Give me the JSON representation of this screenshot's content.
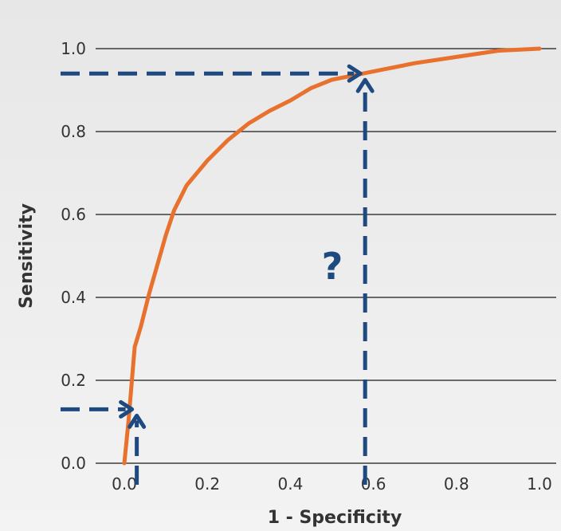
{
  "chart_data": {
    "type": "line",
    "title": "",
    "xlabel": "1 - Specificity",
    "ylabel": "Sensitivity",
    "xlim": [
      0,
      1
    ],
    "ylim": [
      0,
      1
    ],
    "x_ticks": [
      "0.0",
      "0.2",
      "0.4",
      "0.6",
      "0.8",
      "1.0"
    ],
    "y_ticks": [
      "0.0",
      "0.2",
      "0.4",
      "0.6",
      "0.8",
      "1.0"
    ],
    "grid": "horizontal",
    "series": [
      {
        "color": "#e8712e",
        "x": [
          0.0,
          0.005,
          0.01,
          0.015,
          0.02,
          0.025,
          0.04,
          0.06,
          0.08,
          0.1,
          0.12,
          0.15,
          0.2,
          0.25,
          0.3,
          0.35,
          0.4,
          0.45,
          0.5,
          0.55,
          0.6,
          0.7,
          0.8,
          0.9,
          1.0
        ],
        "y": [
          0.0,
          0.05,
          0.1,
          0.16,
          0.22,
          0.28,
          0.33,
          0.41,
          0.48,
          0.55,
          0.61,
          0.67,
          0.73,
          0.78,
          0.82,
          0.85,
          0.875,
          0.905,
          0.925,
          0.935,
          0.945,
          0.965,
          0.98,
          0.995,
          1.0
        ]
      }
    ],
    "annotations": {
      "question_text": "?",
      "guides": [
        {
          "color": "#1e4a80",
          "x": 0.58,
          "y": 0.94
        },
        {
          "color": "#1e4a80",
          "x": 0.03,
          "y": 0.13
        }
      ]
    }
  }
}
